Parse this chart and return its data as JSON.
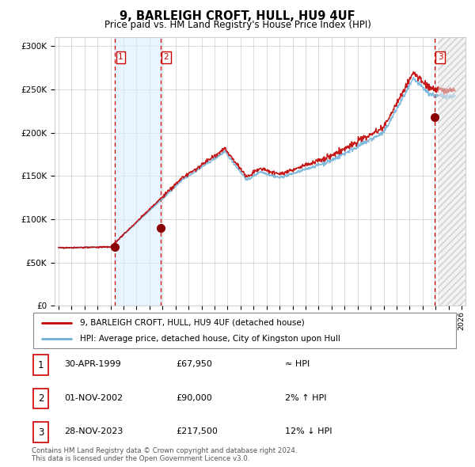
{
  "title": "9, BARLEIGH CROFT, HULL, HU9 4UF",
  "subtitle": "Price paid vs. HM Land Registry's House Price Index (HPI)",
  "ylim": [
    0,
    310000
  ],
  "yticks": [
    0,
    50000,
    100000,
    150000,
    200000,
    250000,
    300000
  ],
  "x_start_year": 1995,
  "x_end_year": 2026,
  "hpi_color": "#6baed6",
  "price_color": "#c00000",
  "sale_marker_color": "#8b0000",
  "vline_color": "#cc0000",
  "shading_color": "#ddeeff",
  "sale1": {
    "date_year": 1999.33,
    "price": 67950,
    "label": "1"
  },
  "sale2": {
    "date_year": 2002.83,
    "price": 90000,
    "label": "2"
  },
  "sale3": {
    "date_year": 2023.91,
    "price": 217500,
    "label": "3"
  },
  "current_year": 2024.17,
  "legend_red_label": "9, BARLEIGH CROFT, HULL, HU9 4UF (detached house)",
  "legend_blue_label": "HPI: Average price, detached house, City of Kingston upon Hull",
  "table_rows": [
    {
      "num": "1",
      "date": "30-APR-1999",
      "price": "£67,950",
      "hpi": "≈ HPI"
    },
    {
      "num": "2",
      "date": "01-NOV-2002",
      "price": "£90,000",
      "hpi": "2% ↑ HPI"
    },
    {
      "num": "3",
      "date": "28-NOV-2023",
      "price": "£217,500",
      "hpi": "12% ↓ HPI"
    }
  ],
  "footnote1": "Contains HM Land Registry data © Crown copyright and database right 2024.",
  "footnote2": "This data is licensed under the Open Government Licence v3.0."
}
